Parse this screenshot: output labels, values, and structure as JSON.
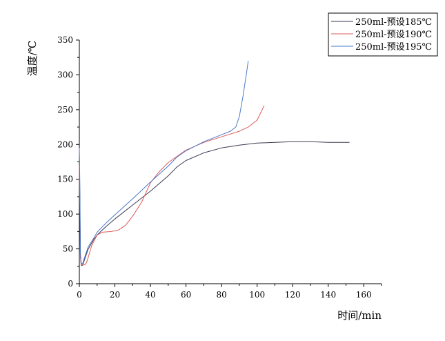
{
  "chart_data": {
    "type": "line",
    "xlabel": "时间/min",
    "ylabel": "温度/℃",
    "xlim": [
      0,
      170
    ],
    "ylim": [
      0,
      350
    ],
    "xticks": [
      0,
      20,
      40,
      60,
      80,
      100,
      120,
      140,
      160
    ],
    "yticks": [
      0,
      50,
      100,
      150,
      200,
      250,
      300,
      350
    ],
    "grid": false,
    "legend_position": "top-right",
    "series": [
      {
        "name": "250ml-预设185℃",
        "color": "#3a3a50",
        "x": [
          0,
          0.3,
          0.6,
          1,
          1.5,
          2,
          3,
          5,
          8,
          10,
          15,
          20,
          30,
          40,
          50,
          55,
          60,
          70,
          80,
          90,
          100,
          110,
          120,
          130,
          140,
          152
        ],
        "y": [
          190,
          120,
          40,
          27,
          26,
          28,
          35,
          50,
          63,
          70,
          82,
          93,
          113,
          133,
          155,
          168,
          177,
          188,
          195,
          199,
          202,
          203,
          204,
          204,
          203,
          203
        ]
      },
      {
        "name": "250ml-预设190℃",
        "color": "#e05a5a",
        "x": [
          0,
          0.3,
          0.6,
          1,
          2,
          3,
          4,
          5,
          7,
          10,
          13,
          18,
          22,
          26,
          30,
          35,
          40,
          45,
          50,
          55,
          60,
          70,
          80,
          90,
          95,
          100,
          104
        ],
        "y": [
          170,
          110,
          40,
          28,
          27,
          27,
          30,
          38,
          55,
          70,
          74,
          75,
          77,
          84,
          97,
          117,
          145,
          161,
          174,
          183,
          192,
          203,
          211,
          219,
          225,
          235,
          256
        ]
      },
      {
        "name": "250ml-预设195℃",
        "color": "#4a78c8",
        "x": [
          0,
          0.3,
          0.6,
          1,
          1.5,
          2,
          3,
          5,
          8,
          10,
          15,
          20,
          30,
          40,
          50,
          55,
          60,
          70,
          80,
          85,
          88,
          90,
          92,
          94,
          95
        ],
        "y": [
          195,
          140,
          45,
          30,
          29,
          30,
          38,
          53,
          65,
          74,
          87,
          99,
          122,
          146,
          169,
          182,
          191,
          204,
          214,
          219,
          225,
          240,
          268,
          302,
          320
        ]
      }
    ]
  }
}
